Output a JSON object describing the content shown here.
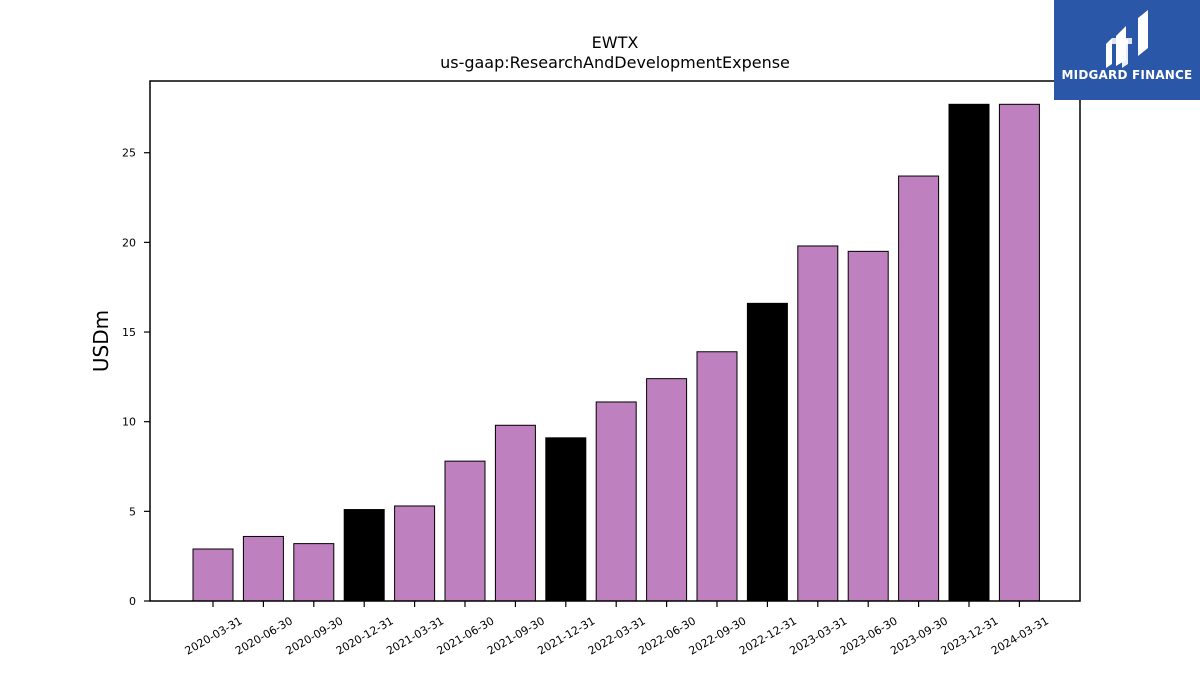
{
  "chart_data": {
    "type": "bar",
    "title": "EWTX",
    "subtitle": "us-gaap:ResearchAndDevelopmentExpense",
    "xlabel": "",
    "ylabel": "USDm",
    "ylim": [
      0,
      29
    ],
    "yticks": [
      0,
      5,
      10,
      15,
      20,
      25
    ],
    "grid": false,
    "colors": {
      "default": "#bf80bf",
      "highlight": "#000000",
      "edge": "#000000"
    },
    "categories": [
      "2020-03-31",
      "2020-06-30",
      "2020-09-30",
      "2020-12-31",
      "2021-03-31",
      "2021-06-30",
      "2021-09-30",
      "2021-12-31",
      "2022-03-31",
      "2022-06-30",
      "2022-09-30",
      "2022-12-31",
      "2023-03-31",
      "2023-06-30",
      "2023-09-30",
      "2023-12-31",
      "2024-03-31"
    ],
    "values": [
      2.9,
      3.6,
      3.2,
      5.1,
      5.3,
      7.8,
      9.8,
      9.1,
      11.1,
      12.4,
      13.9,
      16.6,
      19.8,
      19.5,
      23.7,
      27.7,
      27.7
    ],
    "highlighted": [
      false,
      false,
      false,
      true,
      false,
      false,
      false,
      true,
      false,
      false,
      false,
      true,
      false,
      false,
      false,
      true,
      false
    ]
  },
  "logo": {
    "text": "MIDGARD FINANCE",
    "color": "#2a57a8"
  }
}
